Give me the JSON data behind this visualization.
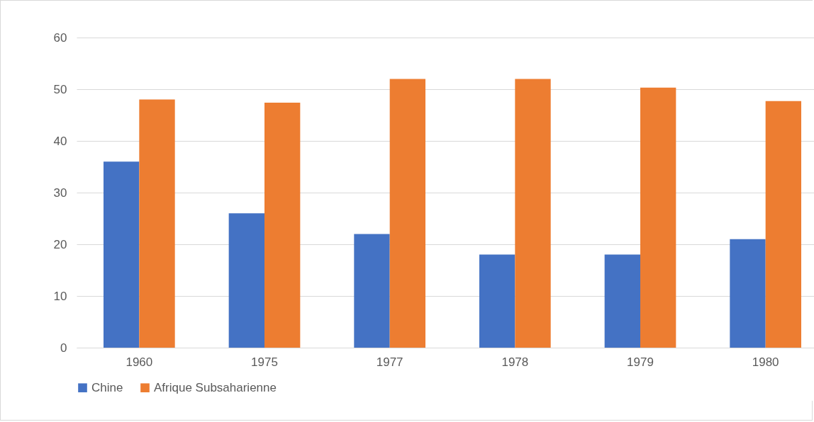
{
  "chart_data": {
    "type": "bar",
    "categories": [
      "1960",
      "1975",
      "1977",
      "1978",
      "1979",
      "1980"
    ],
    "series": [
      {
        "name": "Chine",
        "color": "#4472c4",
        "values": [
          36,
          26,
          22,
          18,
          18,
          21
        ]
      },
      {
        "name": "Afrique Subsaharienne",
        "color": "#ed7d31",
        "values": [
          48,
          47.4,
          52,
          52,
          50.3,
          47.7
        ]
      }
    ],
    "ylim": [
      0,
      60
    ],
    "yticks": [
      0,
      10,
      20,
      30,
      40,
      50,
      60
    ],
    "grid": "y",
    "legend": "bottom"
  }
}
